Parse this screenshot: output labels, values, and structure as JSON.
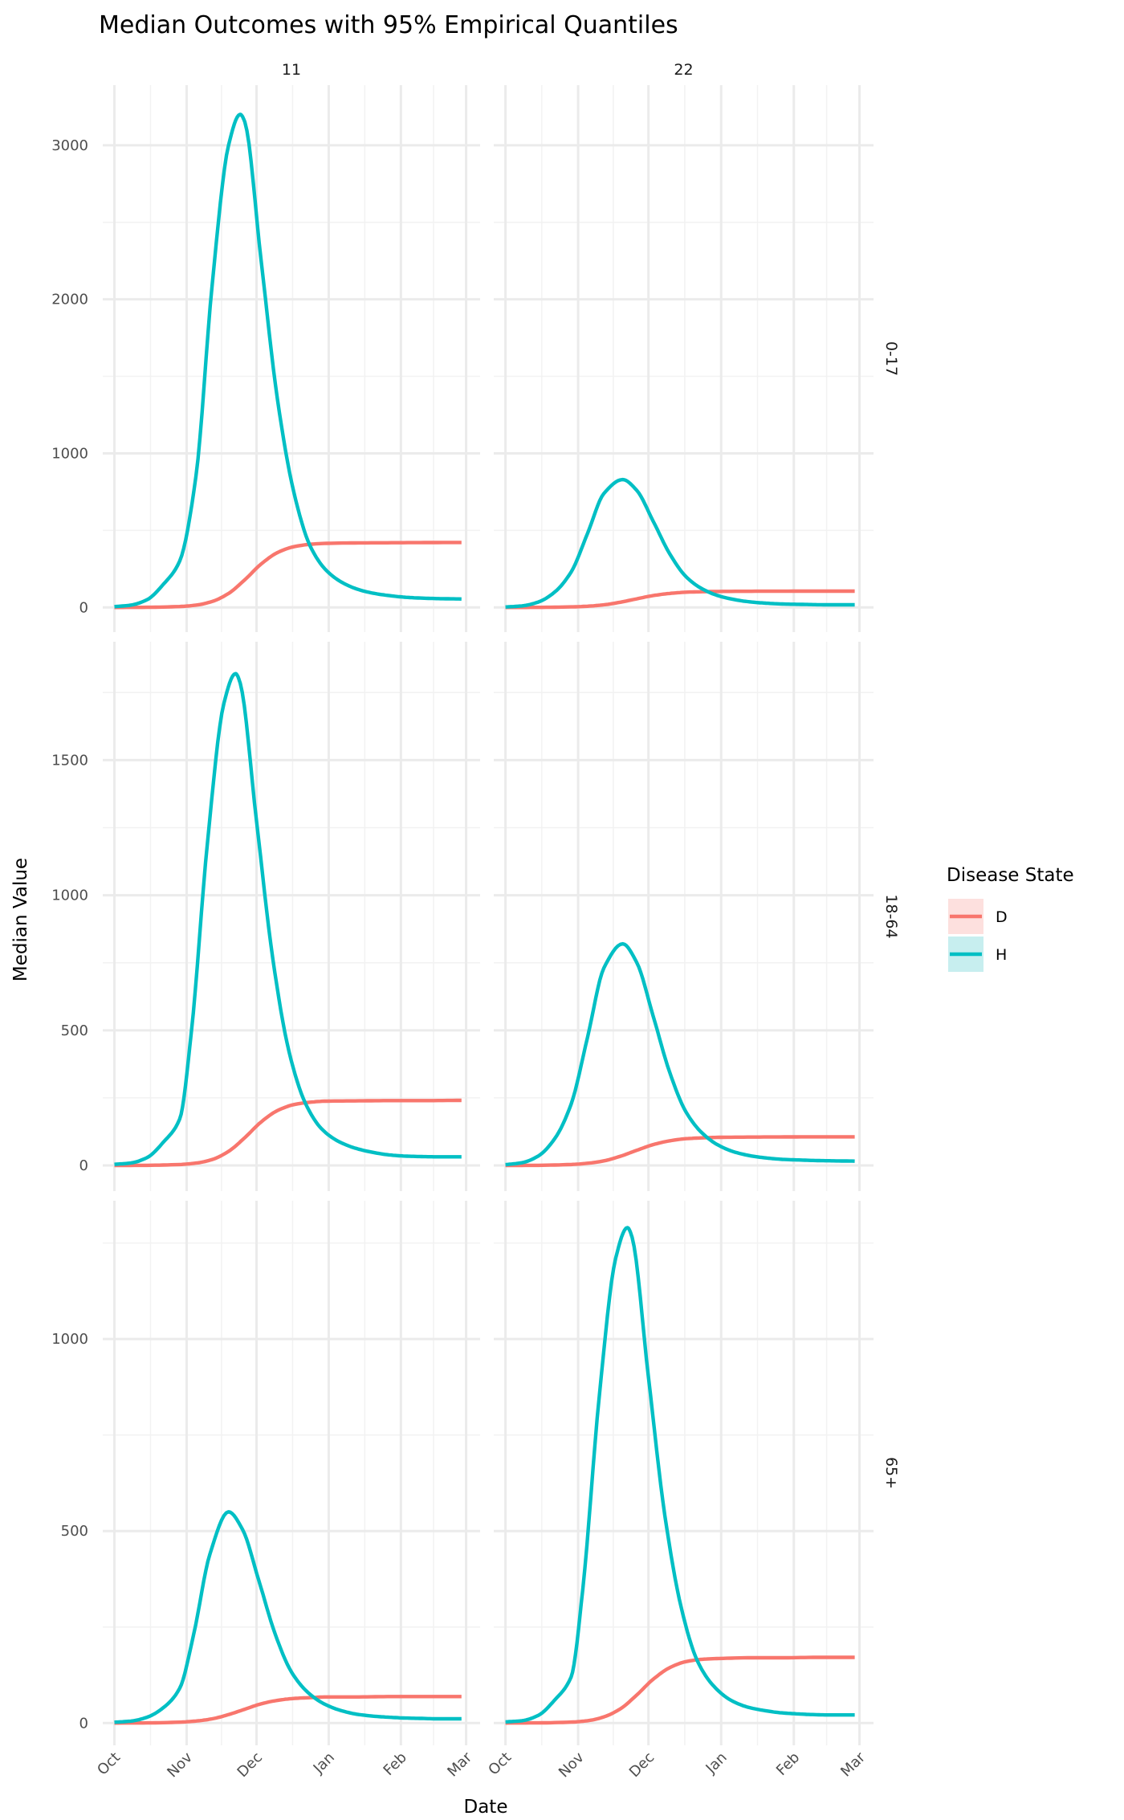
{
  "chart_data": {
    "type": "line",
    "title": "Median Outcomes with 95% Empirical Quantiles",
    "xlabel": "Date",
    "ylabel": "Median Value",
    "x_unit": "days since Oct 1",
    "xlim": [
      -5,
      157
    ],
    "x_ticks": [
      {
        "label": "Oct",
        "day": 0
      },
      {
        "label": "Nov",
        "day": 31
      },
      {
        "label": "Dec",
        "day": 61
      },
      {
        "label": "Jan",
        "day": 92
      },
      {
        "label": "Feb",
        "day": 123
      },
      {
        "label": "Mar",
        "day": 151
      }
    ],
    "x_minor": [
      15.5,
      46,
      76.5,
      107.5,
      137
    ],
    "grid": true,
    "legend": {
      "title": "Disease State",
      "placement": "right",
      "entries": [
        "D",
        "H"
      ]
    },
    "colors": {
      "D": "#F8766D",
      "H": "#00BFC4",
      "D_fill": "#FDE0DE",
      "H_fill": "#C7EEEF"
    },
    "col_facets": [
      "11",
      "22"
    ],
    "row_facets": [
      {
        "label": "0-17",
        "ylim": [
          -160,
          3390
        ],
        "yticks": [
          0,
          1000,
          2000,
          3000
        ],
        "yminor": [
          500,
          1500,
          2500
        ]
      },
      {
        "label": "18-64",
        "ylim": [
          -95,
          1938
        ],
        "yticks": [
          0,
          500,
          1000,
          1500
        ],
        "yminor": [
          250,
          750,
          1250,
          1750
        ]
      },
      {
        "label": "65+",
        "ylim": [
          -58,
          1360
        ],
        "yticks": [
          0,
          500,
          1000
        ],
        "yminor": [
          250,
          750,
          1250
        ]
      }
    ],
    "panels": [
      {
        "col": 0,
        "row": 0,
        "series": [
          {
            "name": "D",
            "x": [
              0,
              14,
              28,
              35,
              42,
              49,
              56,
              63,
              70,
              77,
              84,
              91,
              105,
              119,
              133,
              149
            ],
            "y": [
              0,
              1,
              6,
              15,
              39,
              91,
              180,
              282,
              356,
              394,
              410,
              416,
              419,
              420,
              421,
              422
            ]
          },
          {
            "name": "H",
            "x": [
              0,
              7,
              14,
              21,
              28,
              35,
              42,
              49,
              54,
              56,
              63,
              70,
              77,
              84,
              91,
              98,
              105,
              112,
              119,
              126,
              133,
              140,
              149
            ],
            "y": [
              5,
              15,
              50,
              150,
              300,
              850,
              2100,
              3000,
              3200,
              3150,
              2250,
              1350,
              750,
              400,
              240,
              160,
              115,
              90,
              75,
              65,
              60,
              57,
              55
            ]
          }
        ]
      },
      {
        "col": 1,
        "row": 0,
        "series": [
          {
            "name": "D",
            "x": [
              0,
              14,
              28,
              35,
              42,
              49,
              56,
              63,
              70,
              77,
              84,
              91,
              105,
              119,
              133,
              149
            ],
            "y": [
              0,
              0.5,
              3.5,
              8,
              17,
              34,
              56,
              77,
              91,
              99,
              102,
              104,
              105,
              105.5,
              106,
              106
            ]
          },
          {
            "name": "H",
            "x": [
              0,
              7,
              14,
              21,
              28,
              35,
              42,
              50,
              56,
              63,
              70,
              77,
              84,
              91,
              98,
              105,
              112,
              119,
              126,
              133,
              140,
              149
            ],
            "y": [
              3,
              10,
              35,
              100,
              230,
              480,
              740,
              830,
              760,
              560,
              350,
              200,
              120,
              75,
              50,
              35,
              27,
              22,
              20,
              18,
              17,
              17
            ]
          }
        ]
      },
      {
        "col": 0,
        "row": 1,
        "series": [
          {
            "name": "D",
            "x": [
              0,
              14,
              28,
              35,
              42,
              49,
              56,
              63,
              70,
              77,
              84,
              91,
              105,
              119,
              133,
              149
            ],
            "y": [
              0,
              0.5,
              3.4,
              8.6,
              22,
              52,
              103,
              161,
              203,
              225,
              234,
              238,
              239,
              240,
              240,
              241
            ]
          },
          {
            "name": "H",
            "x": [
              0,
              7,
              14,
              21,
              28,
              33,
              40,
              47,
              52,
              54,
              61,
              68,
              75,
              82,
              89,
              96,
              103,
              110,
              117,
              124,
              131,
              138,
              149
            ],
            "y": [
              4,
              9,
              29,
              86,
              171,
              490,
              1200,
              1710,
              1820,
              1785,
              1275,
              765,
              420,
              230,
              135,
              90,
              65,
              50,
              40,
              35,
              33,
              32,
              32
            ]
          }
        ]
      },
      {
        "col": 1,
        "row": 1,
        "series": [
          {
            "name": "D",
            "x": [
              0,
              14,
              28,
              35,
              42,
              49,
              56,
              63,
              70,
              77,
              84,
              91,
              105,
              119,
              133,
              149
            ],
            "y": [
              0,
              0.5,
              3.5,
              8,
              17,
              34,
              56,
              77,
              91,
              99,
              102,
              104,
              105,
              105.5,
              106,
              106
            ]
          },
          {
            "name": "H",
            "x": [
              0,
              7,
              14,
              21,
              28,
              35,
              42,
              50,
              56,
              63,
              70,
              77,
              84,
              91,
              98,
              105,
              112,
              119,
              126,
              133,
              140,
              149
            ],
            "y": [
              3,
              10,
              35,
              99,
              227,
              474,
              731,
              820,
              751,
              553,
              346,
              198,
              119,
              74,
              49,
              35,
              27,
              22,
              20,
              18,
              17,
              16
            ]
          }
        ]
      },
      {
        "col": 0,
        "row": 2,
        "series": [
          {
            "name": "D",
            "x": [
              0,
              14,
              28,
              35,
              42,
              49,
              56,
              63,
              70,
              77,
              84,
              91,
              105,
              119,
              133,
              149
            ],
            "y": [
              0,
              0.3,
              2.3,
              5.2,
              11,
              22,
              36,
              50,
              59,
              64,
              66,
              68,
              68,
              69,
              69,
              69
            ]
          },
          {
            "name": "H",
            "x": [
              0,
              7,
              14,
              21,
              28,
              34,
              41,
              49,
              55,
              62,
              69,
              76,
              83,
              90,
              97,
              104,
              111,
              118,
              125,
              132,
              139,
              149
            ],
            "y": [
              2,
              5,
              15,
              40,
              90,
              230,
              440,
              550,
              504,
              371,
              232,
              133,
              80,
              50,
              33,
              23,
              18,
              15,
              13,
              12,
              11,
              11
            ]
          }
        ]
      },
      {
        "col": 1,
        "row": 2,
        "series": [
          {
            "name": "D",
            "x": [
              0,
              14,
              28,
              35,
              42,
              49,
              56,
              63,
              70,
              77,
              84,
              91,
              105,
              119,
              133,
              149
            ],
            "y": [
              0,
              0.4,
              2.4,
              6,
              16,
              37,
              73,
              114,
              144,
              160,
              166,
              168,
              170,
              170,
              171,
              171
            ]
          },
          {
            "name": "H",
            "x": [
              0,
              7,
              14,
              21,
              28,
              33,
              40,
              47,
              52,
              54,
              61,
              68,
              75,
              82,
              89,
              96,
              103,
              110,
              117,
              124,
              131,
              138,
              149
            ],
            "y": [
              3,
              6,
              20,
              60,
              120,
              350,
              850,
              1210,
              1290,
              1265,
              900,
              540,
              300,
              160,
              95,
              60,
              42,
              33,
              27,
              24,
              22,
              21,
              21
            ]
          }
        ]
      }
    ]
  }
}
